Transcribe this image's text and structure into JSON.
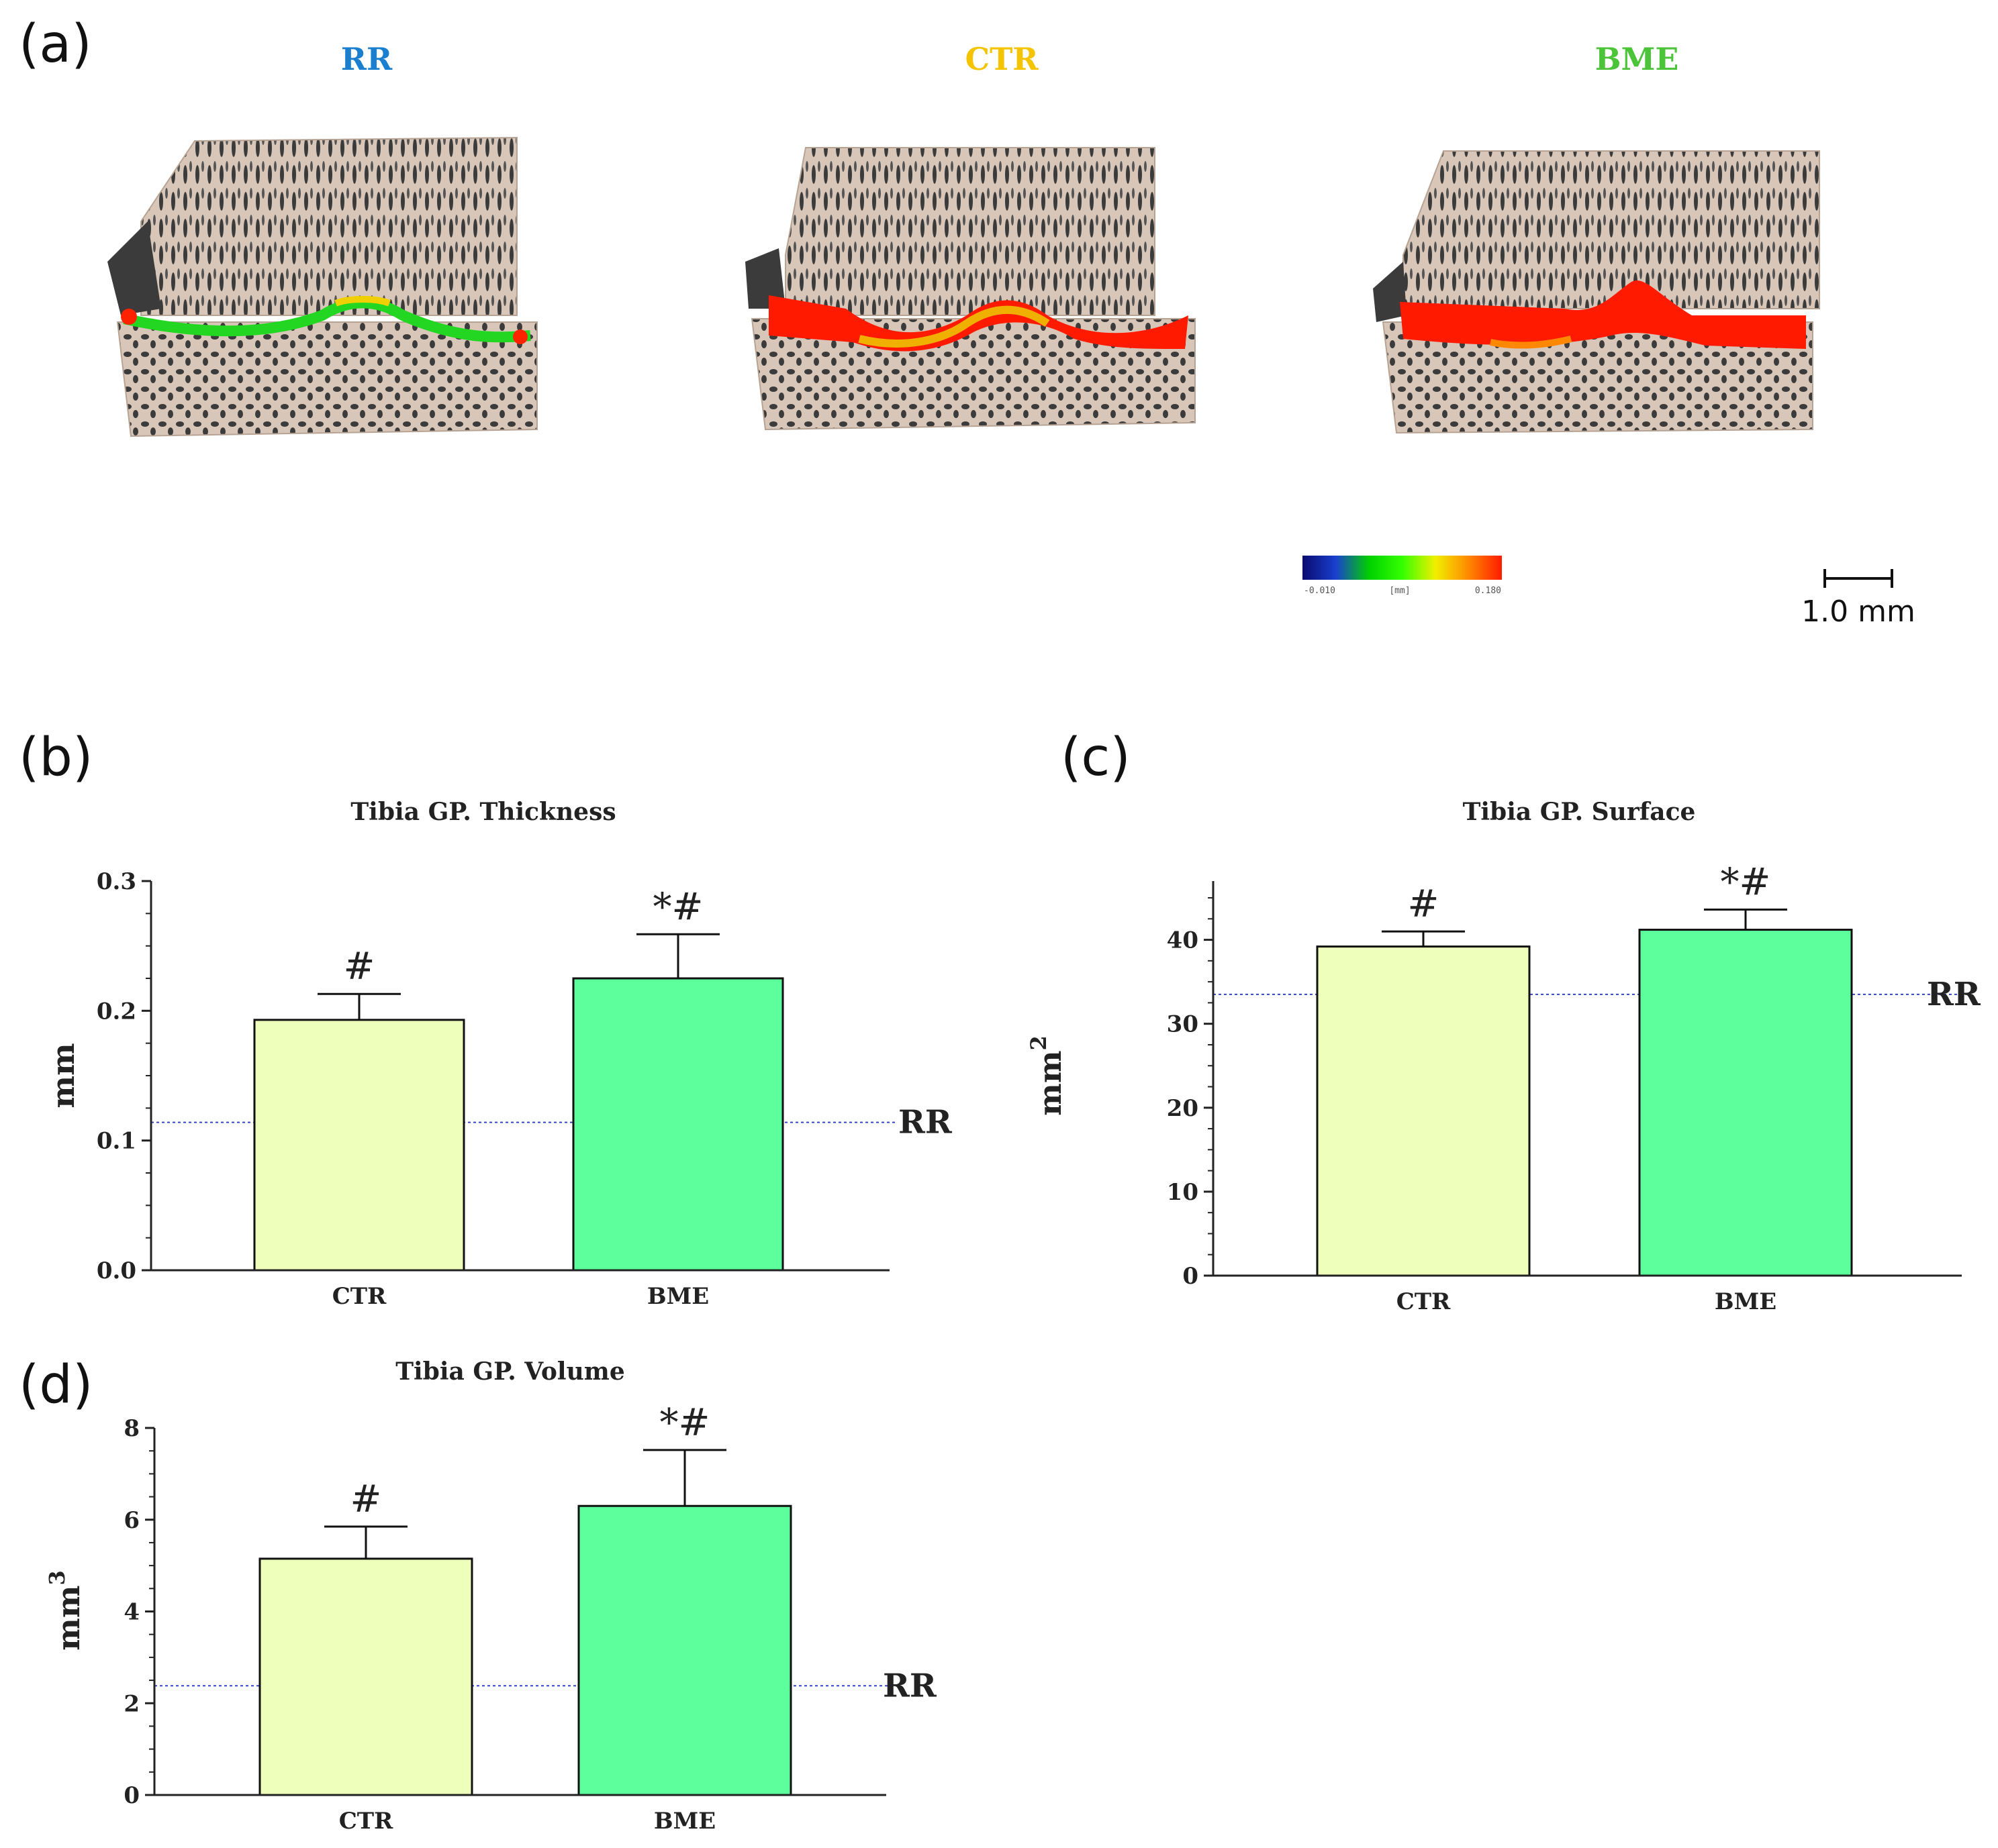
{
  "panels": {
    "a": "(a)",
    "b": "(b)",
    "c": "(c)",
    "d": "(d)"
  },
  "groups": [
    {
      "label": "RR",
      "color": "#1a7fcf"
    },
    {
      "label": "CTR",
      "color": "#f5c400"
    },
    {
      "label": "BME",
      "color": "#4cc43a"
    }
  ],
  "colorbar": {
    "min_label": "-0.010",
    "unit_label": "[mm]",
    "max_label": "0.180",
    "stops": [
      "#0a0a6e",
      "#1a3fd0",
      "#00d000",
      "#33ff00",
      "#f0f000",
      "#ff8800",
      "#ff1a00"
    ]
  },
  "scalebar": {
    "label": "1.0 mm"
  },
  "colors": {
    "ctr_bar": "#eeffbb",
    "bme_bar": "#5cff9c",
    "rr_line": "#3344cc",
    "axis": "#222222"
  },
  "chart_data": [
    {
      "id": "thickness",
      "type": "bar",
      "title": "Tibia GP. Thickness",
      "ylabel": "mm",
      "ylabel_sup": "",
      "categories": [
        "CTR",
        "BME"
      ],
      "values": [
        0.193,
        0.225
      ],
      "errors": [
        0.02,
        0.034
      ],
      "annotations": [
        "#",
        "*#"
      ],
      "reference": {
        "label": "RR",
        "value": 0.114
      },
      "ylim": [
        0,
        0.3
      ],
      "yticks": [
        0.0,
        0.1,
        0.2,
        0.3
      ],
      "ytick_labels": [
        "0.0",
        "0.1",
        "0.2",
        "0.3"
      ]
    },
    {
      "id": "surface",
      "type": "bar",
      "title": "Tibia GP. Surface",
      "ylabel": "mm",
      "ylabel_sup": "2",
      "categories": [
        "CTR",
        "BME"
      ],
      "values": [
        39.2,
        41.2
      ],
      "errors": [
        1.8,
        2.4
      ],
      "annotations": [
        "#",
        "*#"
      ],
      "reference": {
        "label": "RR",
        "value": 33.5
      },
      "ylim": [
        0,
        47
      ],
      "yticks": [
        0,
        10,
        20,
        30,
        40
      ],
      "ytick_labels": [
        "0",
        "10",
        "20",
        "30",
        "40"
      ]
    },
    {
      "id": "volume",
      "type": "bar",
      "title": "Tibia GP. Volume",
      "ylabel": "mm",
      "ylabel_sup": "3",
      "categories": [
        "CTR",
        "BME"
      ],
      "values": [
        5.15,
        6.3
      ],
      "errors": [
        0.7,
        1.22
      ],
      "annotations": [
        "#",
        "*#"
      ],
      "reference": {
        "label": "RR",
        "value": 2.38
      },
      "ylim": [
        0,
        8
      ],
      "yticks": [
        0,
        2,
        4,
        6,
        8
      ],
      "ytick_labels": [
        "0",
        "2",
        "4",
        "6",
        "8"
      ]
    }
  ]
}
